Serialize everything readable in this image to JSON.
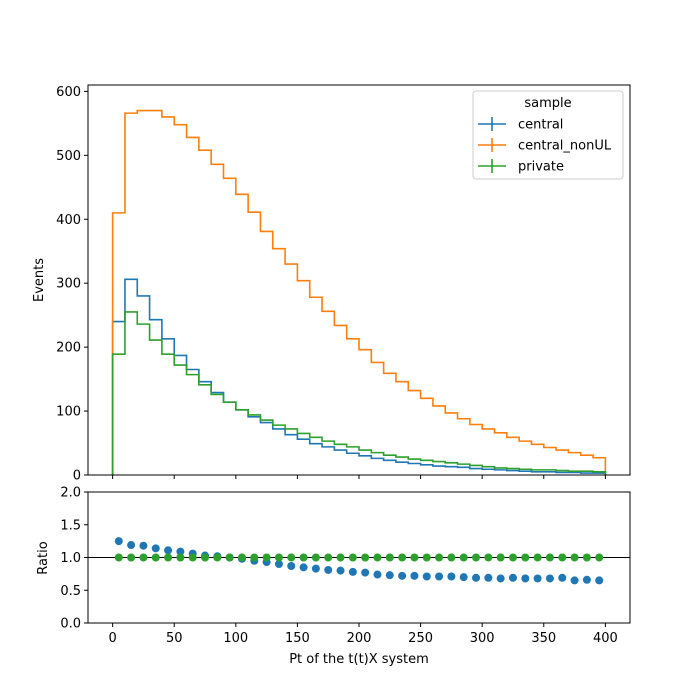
{
  "chart_data": [
    {
      "type": "line",
      "style": "step-histogram",
      "title": "",
      "xlabel": "Pt of the t(t)X system",
      "ylabel": "Events",
      "xlim": [
        -20,
        420
      ],
      "ylim": [
        0,
        610
      ],
      "xticks": [
        0,
        50,
        100,
        150,
        200,
        250,
        300,
        350,
        400
      ],
      "yticks": [
        0,
        100,
        200,
        300,
        400,
        500,
        600
      ],
      "bin_edges": [
        0,
        10,
        20,
        30,
        40,
        50,
        60,
        70,
        80,
        90,
        100,
        110,
        120,
        130,
        140,
        150,
        160,
        170,
        180,
        190,
        200,
        210,
        220,
        230,
        240,
        250,
        260,
        270,
        280,
        290,
        300,
        310,
        320,
        330,
        340,
        350,
        360,
        370,
        380,
        390,
        400
      ],
      "legend": {
        "title": "sample",
        "position": "top-right"
      },
      "series": [
        {
          "name": "central",
          "color": "#1f77b4",
          "values": [
            240,
            306,
            280,
            243,
            213,
            187,
            165,
            146,
            129,
            114,
            102,
            91,
            82,
            72,
            63,
            56,
            49,
            44,
            39,
            34,
            30,
            26,
            23,
            20,
            18,
            16,
            14,
            13,
            12,
            10,
            9,
            8,
            7,
            6,
            5,
            5,
            4,
            4,
            3,
            3
          ]
        },
        {
          "name": "central_nonUL",
          "color": "#ff7f0e",
          "values": [
            410,
            566,
            570,
            570,
            560,
            548,
            528,
            508,
            486,
            464,
            439,
            411,
            381,
            354,
            330,
            304,
            278,
            256,
            234,
            213,
            196,
            176,
            159,
            146,
            132,
            120,
            108,
            97,
            88,
            79,
            72,
            66,
            59,
            53,
            48,
            43,
            39,
            35,
            31,
            27
          ]
        },
        {
          "name": "private",
          "color": "#2ca02c",
          "values": [
            189,
            255,
            236,
            211,
            189,
            172,
            157,
            141,
            126,
            114,
            102,
            94,
            86,
            78,
            72,
            65,
            59,
            53,
            48,
            44,
            39,
            35,
            31,
            28,
            25,
            23,
            21,
            19,
            17,
            15,
            13,
            11,
            10,
            9,
            8,
            8,
            7,
            6,
            6,
            5
          ]
        }
      ]
    },
    {
      "type": "scatter",
      "title": "",
      "xlabel": "Pt of the t(t)X system",
      "ylabel": "Ratio",
      "xlim": [
        -20,
        420
      ],
      "ylim": [
        0,
        2
      ],
      "yticks": [
        0.0,
        0.5,
        1.0,
        1.5,
        2.0
      ],
      "ytick_labels": [
        "0.0",
        "0.5",
        "1.0",
        "1.5",
        "2.0"
      ],
      "reference_line": 1.0,
      "x": [
        5,
        15,
        25,
        35,
        45,
        55,
        65,
        75,
        85,
        95,
        105,
        115,
        125,
        135,
        145,
        155,
        165,
        175,
        185,
        195,
        205,
        215,
        225,
        235,
        245,
        255,
        265,
        275,
        285,
        295,
        305,
        315,
        325,
        335,
        345,
        355,
        365,
        375,
        385,
        395
      ],
      "series": [
        {
          "name": "central",
          "color": "#1f77b4",
          "values": [
            1.25,
            1.19,
            1.18,
            1.14,
            1.11,
            1.09,
            1.06,
            1.03,
            1.02,
            1.0,
            0.98,
            0.95,
            0.93,
            0.9,
            0.87,
            0.85,
            0.83,
            0.81,
            0.8,
            0.78,
            0.77,
            0.74,
            0.73,
            0.72,
            0.72,
            0.71,
            0.71,
            0.71,
            0.7,
            0.69,
            0.69,
            0.68,
            0.69,
            0.68,
            0.68,
            0.68,
            0.69,
            0.65,
            0.66,
            0.65
          ]
        },
        {
          "name": "private",
          "color": "#2ca02c",
          "values": [
            1,
            1,
            1,
            1,
            1,
            1,
            1,
            1,
            1,
            1,
            1,
            1,
            1,
            1,
            1,
            1,
            1,
            1,
            1,
            1,
            1,
            1,
            1,
            1,
            1,
            1,
            1,
            1,
            1,
            1,
            1,
            1,
            1,
            1,
            1,
            1,
            1,
            1,
            1,
            1
          ]
        }
      ]
    }
  ]
}
